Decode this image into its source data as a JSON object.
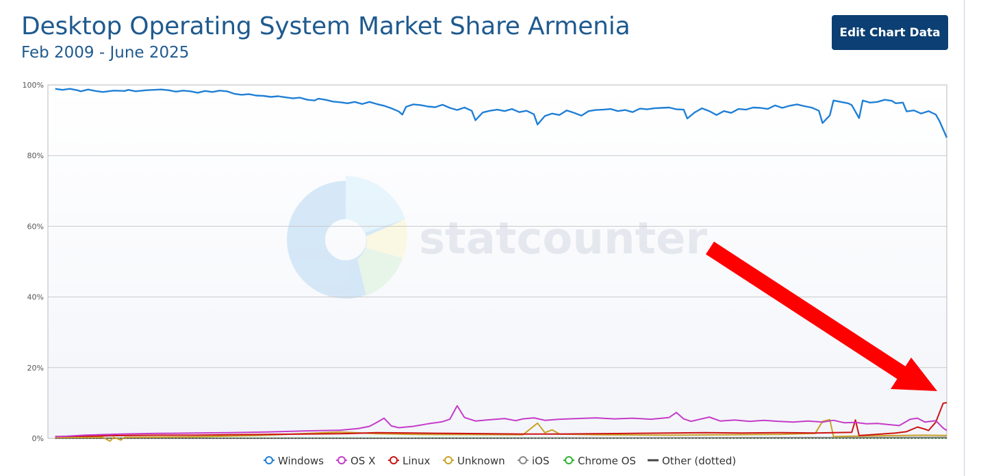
{
  "header": {
    "title": "Desktop Operating System Market Share Armenia",
    "subtitle": "Feb 2009 - June 2025",
    "edit_button_label": "Edit Chart Data"
  },
  "watermark": {
    "text": "statcounter"
  },
  "chart_data": {
    "type": "line",
    "title": "Desktop Operating System Market Share Armenia",
    "subtitle": "Feb 2009 - June 2025",
    "xlabel": "",
    "ylabel": "",
    "ylim": [
      0,
      100
    ],
    "y_ticks": [
      "0%",
      "20%",
      "40%",
      "60%",
      "80%",
      "100%"
    ],
    "x_start": "2009-02",
    "x_end": "2025-06",
    "grid": true,
    "legend_position": "bottom",
    "series": [
      {
        "name": "Windows",
        "color": "#1f7fd6",
        "marker": "circle",
        "values": [
          98.9,
          98.6,
          98.2,
          98.8,
          98.3,
          98.7,
          98.4,
          98.1,
          98.2,
          98.3,
          98.0,
          98.4,
          98.2,
          98.5,
          98.6,
          98.4,
          98.2,
          97.9,
          98.0,
          97.6,
          97.9,
          97.5,
          97.4,
          97.0,
          96.8,
          96.7,
          96.2,
          96.5,
          96.0,
          95.6,
          95.3,
          95.0,
          94.8,
          95.2,
          94.6,
          94.8,
          94.5,
          94.1,
          93.2,
          91.8,
          94.6,
          94.9,
          94.2,
          93.9,
          93.5,
          93.9,
          94.4,
          94.6,
          93.2,
          90.5,
          92.0,
          92.5,
          93.1,
          92.8,
          92.4,
          93.0,
          92.6,
          92.1,
          91.1,
          88.8,
          91.2,
          91.8,
          91.6,
          92.5,
          92.2,
          92.0,
          91.5,
          92.8,
          92.6,
          93.2,
          93.5,
          93.0,
          92.8,
          92.6,
          93.1,
          93.4,
          93.0,
          93.5,
          93.8,
          93.2,
          92.9,
          90.2,
          91.8,
          93.2,
          92.4,
          91.9,
          92.6,
          93.0,
          92.8,
          93.5,
          93.1,
          93.8,
          93.9,
          94.1,
          93.2,
          92.5,
          89.8,
          90.6,
          95.4,
          95.2,
          94.9,
          92.3,
          95.6,
          95.0,
          94.8,
          95.6,
          95.9,
          94.2,
          95.1,
          92.5,
          93.0,
          92.0,
          91.5,
          93.2,
          90.5,
          89.5,
          85.1
        ],
        "curve_points": [
          [
            2,
            98.9
          ],
          [
            4,
            98.6
          ],
          [
            6,
            98.9
          ],
          [
            8,
            98.5
          ],
          [
            9,
            98.2
          ],
          [
            11,
            98.7
          ],
          [
            13,
            98.3
          ],
          [
            15,
            98.0
          ],
          [
            18,
            98.4
          ],
          [
            21,
            98.3
          ],
          [
            22,
            98.6
          ],
          [
            24,
            98.2
          ],
          [
            27,
            98.5
          ],
          [
            29,
            98.6
          ],
          [
            31,
            98.7
          ],
          [
            33,
            98.5
          ],
          [
            35,
            98.1
          ],
          [
            37,
            98.4
          ],
          [
            39,
            98.2
          ],
          [
            41,
            97.8
          ],
          [
            43,
            98.3
          ],
          [
            45,
            98.0
          ],
          [
            47,
            98.4
          ],
          [
            49,
            98.2
          ],
          [
            51,
            97.5
          ],
          [
            53,
            97.2
          ],
          [
            55,
            97.4
          ],
          [
            57,
            97.0
          ],
          [
            59,
            96.9
          ],
          [
            61,
            96.6
          ],
          [
            63,
            96.8
          ],
          [
            65,
            96.5
          ],
          [
            67,
            96.2
          ],
          [
            69,
            96.4
          ],
          [
            71,
            95.8
          ],
          [
            73,
            95.6
          ],
          [
            74,
            96.1
          ],
          [
            76,
            95.8
          ],
          [
            78,
            95.3
          ],
          [
            80,
            95.1
          ],
          [
            82,
            94.8
          ],
          [
            84,
            95.2
          ],
          [
            86,
            94.6
          ],
          [
            88,
            95.2
          ],
          [
            90,
            94.6
          ],
          [
            92,
            94.1
          ],
          [
            94,
            93.4
          ],
          [
            96,
            92.5
          ],
          [
            97,
            91.6
          ],
          [
            98,
            93.8
          ],
          [
            100,
            94.5
          ],
          [
            102,
            94.3
          ],
          [
            104,
            93.9
          ],
          [
            106,
            93.7
          ],
          [
            108,
            94.4
          ],
          [
            110,
            93.5
          ],
          [
            112,
            92.9
          ],
          [
            114,
            93.6
          ],
          [
            116,
            92.7
          ],
          [
            117,
            90.0
          ],
          [
            119,
            92.2
          ],
          [
            121,
            92.7
          ],
          [
            123,
            93.0
          ],
          [
            125,
            92.6
          ],
          [
            127,
            93.2
          ],
          [
            129,
            92.3
          ],
          [
            131,
            92.7
          ],
          [
            133,
            91.7
          ],
          [
            134,
            88.8
          ],
          [
            136,
            91.2
          ],
          [
            138,
            91.9
          ],
          [
            140,
            91.5
          ],
          [
            142,
            92.8
          ],
          [
            144,
            92.1
          ],
          [
            146,
            91.3
          ],
          [
            148,
            92.6
          ],
          [
            150,
            92.9
          ],
          [
            152,
            93.0
          ],
          [
            154,
            93.2
          ],
          [
            156,
            92.6
          ],
          [
            158,
            92.9
          ],
          [
            160,
            92.3
          ],
          [
            162,
            93.3
          ],
          [
            164,
            93.1
          ],
          [
            166,
            93.4
          ],
          [
            168,
            93.5
          ],
          [
            170,
            93.6
          ],
          [
            172,
            93.1
          ],
          [
            174,
            93.0
          ],
          [
            175,
            90.5
          ],
          [
            177,
            92.2
          ],
          [
            179,
            93.4
          ],
          [
            181,
            92.6
          ],
          [
            183,
            91.5
          ],
          [
            185,
            92.6
          ],
          [
            187,
            92.1
          ],
          [
            189,
            93.2
          ],
          [
            191,
            93.0
          ],
          [
            193,
            93.6
          ],
          [
            195,
            93.5
          ],
          [
            197,
            93.2
          ],
          [
            199,
            94.2
          ],
          [
            201,
            93.5
          ],
          [
            203,
            94.1
          ],
          [
            205,
            94.5
          ],
          [
            207,
            94.0
          ],
          [
            209,
            93.6
          ],
          [
            211,
            92.7
          ],
          [
            212,
            89.2
          ],
          [
            214,
            91.4
          ],
          [
            215,
            95.6
          ],
          [
            217,
            95.2
          ],
          [
            219,
            94.8
          ],
          [
            220,
            94.3
          ],
          [
            222,
            90.6
          ],
          [
            223,
            95.6
          ],
          [
            225,
            95.0
          ],
          [
            227,
            95.2
          ],
          [
            229,
            95.8
          ],
          [
            231,
            95.5
          ],
          [
            232,
            94.8
          ],
          [
            234,
            95.0
          ],
          [
            235,
            92.5
          ],
          [
            237,
            92.8
          ],
          [
            239,
            91.9
          ],
          [
            241,
            92.6
          ],
          [
            243,
            91.6
          ],
          [
            244,
            89.8
          ],
          [
            246,
            85.1
          ]
        ]
      },
      {
        "name": "OS X",
        "color": "#c63ac8",
        "marker": "circle",
        "curve_points": [
          [
            2,
            0.4
          ],
          [
            10,
            0.9
          ],
          [
            20,
            1.2
          ],
          [
            30,
            1.4
          ],
          [
            40,
            1.5
          ],
          [
            50,
            1.6
          ],
          [
            60,
            1.8
          ],
          [
            70,
            2.1
          ],
          [
            80,
            2.3
          ],
          [
            85,
            2.8
          ],
          [
            88,
            3.4
          ],
          [
            90,
            4.5
          ],
          [
            92,
            5.7
          ],
          [
            94,
            3.5
          ],
          [
            96,
            3.0
          ],
          [
            100,
            3.4
          ],
          [
            104,
            4.1
          ],
          [
            108,
            4.7
          ],
          [
            110,
            5.4
          ],
          [
            112,
            9.2
          ],
          [
            114,
            5.9
          ],
          [
            117,
            4.9
          ],
          [
            120,
            5.2
          ],
          [
            125,
            5.6
          ],
          [
            128,
            5.0
          ],
          [
            130,
            5.5
          ],
          [
            133,
            5.8
          ],
          [
            136,
            5.1
          ],
          [
            140,
            5.4
          ],
          [
            145,
            5.6
          ],
          [
            150,
            5.8
          ],
          [
            155,
            5.5
          ],
          [
            160,
            5.7
          ],
          [
            165,
            5.4
          ],
          [
            170,
            5.9
          ],
          [
            172,
            7.3
          ],
          [
            174,
            5.5
          ],
          [
            176,
            4.8
          ],
          [
            178,
            5.3
          ],
          [
            181,
            6.0
          ],
          [
            184,
            4.9
          ],
          [
            188,
            5.2
          ],
          [
            192,
            4.8
          ],
          [
            196,
            5.1
          ],
          [
            200,
            4.8
          ],
          [
            204,
            4.6
          ],
          [
            208,
            4.9
          ],
          [
            212,
            4.6
          ],
          [
            215,
            5.1
          ],
          [
            218,
            4.4
          ],
          [
            221,
            4.5
          ],
          [
            224,
            4.1
          ],
          [
            227,
            4.2
          ],
          [
            230,
            3.9
          ],
          [
            233,
            3.6
          ],
          [
            236,
            5.4
          ],
          [
            238,
            5.7
          ],
          [
            240,
            4.6
          ],
          [
            243,
            5.0
          ],
          [
            245,
            2.9
          ],
          [
            246,
            2.2
          ]
        ]
      },
      {
        "name": "Linux",
        "color": "#cc1111",
        "marker": "circle",
        "curve_points": [
          [
            2,
            0.5
          ],
          [
            10,
            0.6
          ],
          [
            20,
            0.8
          ],
          [
            30,
            0.9
          ],
          [
            40,
            0.9
          ],
          [
            50,
            1.0
          ],
          [
            60,
            1.1
          ],
          [
            70,
            1.2
          ],
          [
            80,
            1.3
          ],
          [
            90,
            1.6
          ],
          [
            100,
            1.5
          ],
          [
            110,
            1.4
          ],
          [
            120,
            1.3
          ],
          [
            130,
            1.2
          ],
          [
            140,
            1.2
          ],
          [
            150,
            1.3
          ],
          [
            160,
            1.4
          ],
          [
            170,
            1.5
          ],
          [
            180,
            1.6
          ],
          [
            190,
            1.5
          ],
          [
            200,
            1.6
          ],
          [
            210,
            1.5
          ],
          [
            220,
            1.7
          ],
          [
            221,
            5.2
          ],
          [
            222,
            0.8
          ],
          [
            228,
            1.2
          ],
          [
            232,
            1.5
          ],
          [
            235,
            1.9
          ],
          [
            238,
            3.2
          ],
          [
            240,
            2.6
          ],
          [
            241,
            2.2
          ],
          [
            243,
            4.6
          ],
          [
            245,
            9.9
          ],
          [
            246,
            10.1
          ]
        ]
      },
      {
        "name": "Unknown",
        "color": "#c9a227",
        "marker": "circle",
        "curve_points": [
          [
            2,
            0.2
          ],
          [
            15,
            0.3
          ],
          [
            17,
            -0.8
          ],
          [
            18,
            0.3
          ],
          [
            20,
            -0.5
          ],
          [
            21,
            0.3
          ],
          [
            40,
            0.4
          ],
          [
            60,
            0.9
          ],
          [
            80,
            1.8
          ],
          [
            90,
            1.3
          ],
          [
            100,
            1.1
          ],
          [
            130,
            1.0
          ],
          [
            134,
            4.3
          ],
          [
            136,
            1.6
          ],
          [
            138,
            2.4
          ],
          [
            140,
            1.2
          ],
          [
            150,
            1.0
          ],
          [
            170,
            0.9
          ],
          [
            200,
            1.1
          ],
          [
            210,
            1.4
          ],
          [
            212,
            4.8
          ],
          [
            214,
            5.3
          ],
          [
            215,
            0.5
          ],
          [
            225,
            0.7
          ],
          [
            240,
            0.9
          ],
          [
            246,
            0.8
          ]
        ]
      },
      {
        "name": "iOS",
        "color": "#888888",
        "marker": "circle",
        "curve_points": [
          [
            2,
            0.0
          ],
          [
            100,
            0.0
          ],
          [
            150,
            0.1
          ],
          [
            200,
            0.2
          ],
          [
            246,
            0.3
          ]
        ]
      },
      {
        "name": "Chrome OS",
        "color": "#2db32d",
        "marker": "circle",
        "curve_points": [
          [
            2,
            0.05
          ],
          [
            100,
            0.05
          ],
          [
            180,
            0.1
          ],
          [
            246,
            0.15
          ]
        ]
      },
      {
        "name": "Other (dotted)",
        "color": "#444444",
        "marker": "line",
        "curve_points": [
          [
            2,
            0.0
          ],
          [
            246,
            0.0
          ]
        ]
      }
    ]
  }
}
